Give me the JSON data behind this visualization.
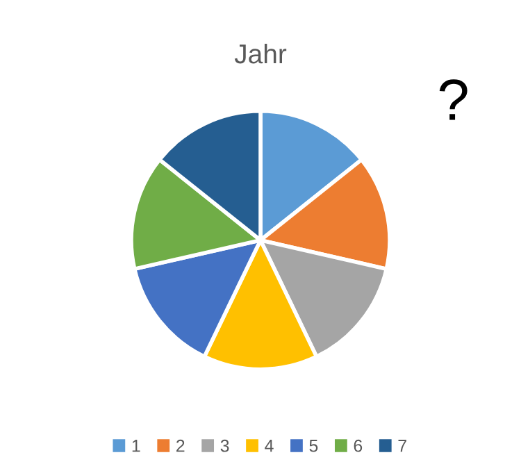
{
  "chart_data": {
    "type": "pie",
    "title": "Jahr",
    "categories": [
      "1",
      "2",
      "3",
      "4",
      "5",
      "6",
      "7"
    ],
    "values": [
      14.29,
      14.29,
      14.28,
      14.29,
      14.28,
      14.29,
      14.28
    ],
    "colors": [
      "#5b9bd5",
      "#ed7d31",
      "#a5a5a5",
      "#ffc000",
      "#4472c4",
      "#70ad47",
      "#255e91"
    ],
    "legend": "bottom",
    "annotations": [
      "?"
    ]
  }
}
